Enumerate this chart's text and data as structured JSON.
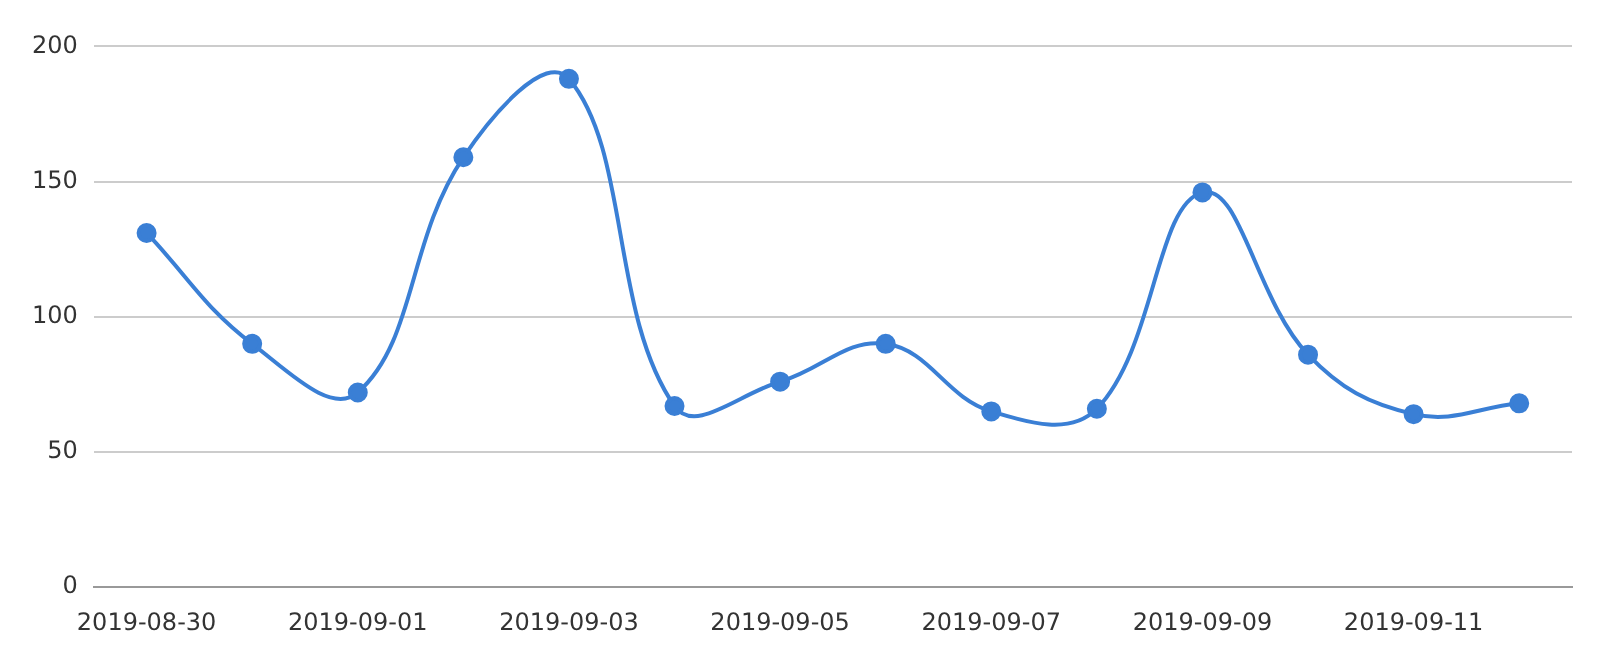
{
  "chart_data": {
    "type": "line",
    "categories": [
      "2019-08-30",
      null,
      "2019-09-01",
      null,
      "2019-09-03",
      null,
      "2019-09-05",
      null,
      "2019-09-07",
      null,
      "2019-09-09",
      null,
      "2019-09-11",
      null
    ],
    "series": [
      {
        "color": "#3a7fd5",
        "values": [
          131,
          90,
          72,
          159,
          188,
          67,
          76,
          90,
          65,
          66,
          146,
          86,
          64,
          68
        ]
      }
    ],
    "ylim": [
      0,
      200
    ],
    "yticks": [
      0,
      50,
      100,
      150,
      200
    ],
    "grid": "y",
    "legend": false,
    "marker": "circle",
    "line_style": "solid"
  }
}
